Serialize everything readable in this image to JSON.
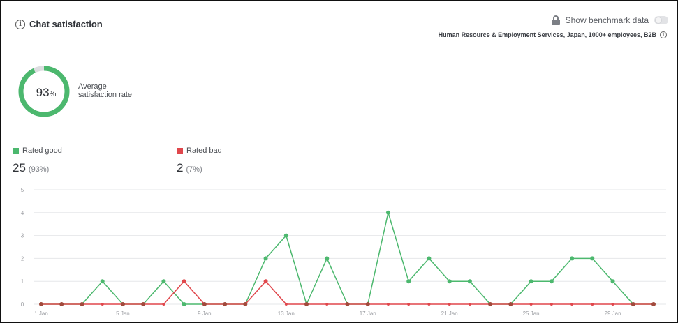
{
  "header": {
    "title": "Chat satisfaction",
    "benchmark_label": "Show benchmark data",
    "segment": "Human Resource & Employment Services, Japan, 1000+ employees, B2B"
  },
  "summary": {
    "rate_value": "93",
    "rate_unit": "%",
    "rate_fraction": 0.93,
    "caption_line1": "Average",
    "caption_line2": "satisfaction rate"
  },
  "legend": {
    "good_label": "Rated good",
    "good_count": "25",
    "good_pct": "(93%)",
    "bad_label": "Rated bad",
    "bad_count": "2",
    "bad_pct": "(7%)"
  },
  "colors": {
    "good": "#4cb86e",
    "bad": "#e0474c",
    "track": "#dcdde0",
    "grid": "#e6e7ea"
  },
  "chart_data": {
    "type": "line",
    "x": [
      "1 Jan",
      "2 Jan",
      "3 Jan",
      "4 Jan",
      "5 Jan",
      "6 Jan",
      "7 Jan",
      "8 Jan",
      "9 Jan",
      "10 Jan",
      "11 Jan",
      "12 Jan",
      "13 Jan",
      "14 Jan",
      "15 Jan",
      "16 Jan",
      "17 Jan",
      "18 Jan",
      "19 Jan",
      "20 Jan",
      "21 Jan",
      "22 Jan",
      "23 Jan",
      "24 Jan",
      "25 Jan",
      "26 Jan",
      "27 Jan",
      "28 Jan",
      "29 Jan",
      "30 Jan",
      "31 Jan"
    ],
    "x_tick_labels": [
      "1 Jan",
      "5 Jan",
      "9 Jan",
      "13 Jan",
      "17 Jan",
      "21 Jan",
      "25 Jan",
      "29 Jan"
    ],
    "y_ticks": [
      "0",
      "1",
      "2",
      "3",
      "4",
      "5"
    ],
    "ylim": [
      0,
      5
    ],
    "grid": true,
    "series": [
      {
        "name": "Rated good",
        "color": "#4cb86e",
        "values": [
          0,
          0,
          0,
          1,
          0,
          0,
          1,
          0,
          0,
          0,
          0,
          2,
          3,
          0,
          2,
          0,
          0,
          4,
          1,
          2,
          1,
          1,
          0,
          0,
          1,
          1,
          2,
          2,
          1,
          0,
          0
        ]
      },
      {
        "name": "Rated bad",
        "color": "#e0474c",
        "values": [
          0,
          0,
          0,
          0,
          0,
          0,
          0,
          1,
          0,
          0,
          0,
          1,
          0,
          0,
          0,
          0,
          0,
          0,
          0,
          0,
          0,
          0,
          0,
          0,
          0,
          0,
          0,
          0,
          0,
          0,
          0
        ]
      }
    ]
  }
}
